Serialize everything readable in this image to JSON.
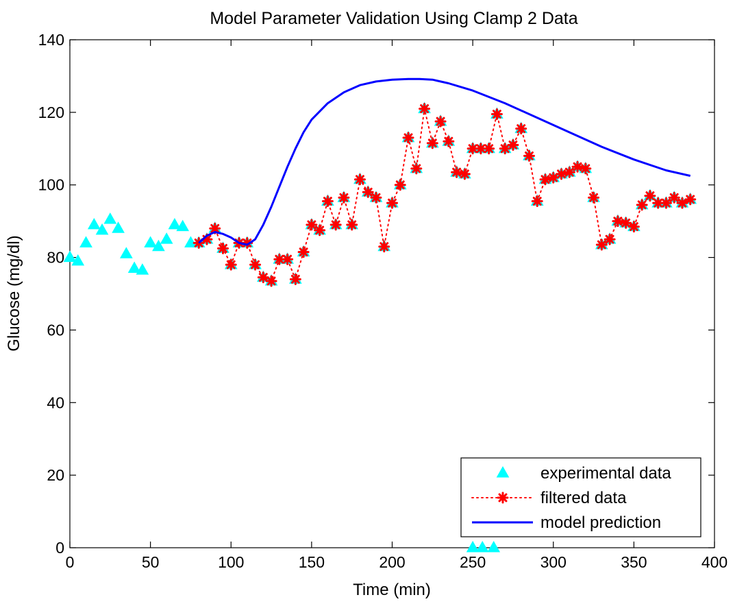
{
  "chart_data": {
    "type": "line",
    "title": "Model Parameter Validation Using Clamp 2 Data",
    "xlabel": "Time (min)",
    "ylabel": "Glucose (mg/dl)",
    "xlim": [
      0,
      400
    ],
    "ylim": [
      0,
      140
    ],
    "xticks": [
      0,
      50,
      100,
      150,
      200,
      250,
      300,
      350,
      400
    ],
    "yticks": [
      0,
      20,
      40,
      60,
      80,
      100,
      120,
      140
    ],
    "grid": false,
    "legend_position": "bottom-right",
    "series": [
      {
        "name": "experimental data",
        "style": "markers",
        "marker": "triangle",
        "color": "#00ffff",
        "x": [
          0,
          5,
          10,
          15,
          20,
          25,
          30,
          35,
          40,
          45,
          50,
          55,
          60,
          65,
          70,
          75,
          80,
          85,
          90,
          95,
          100,
          105,
          110,
          115,
          120,
          125,
          130,
          135,
          140,
          145,
          150,
          155,
          160,
          165,
          170,
          175,
          180,
          185,
          190,
          195,
          200,
          205,
          210,
          215,
          220,
          225,
          230,
          235,
          240,
          245,
          250,
          255,
          260,
          265,
          270,
          275,
          280,
          285,
          290,
          295,
          300,
          305,
          310,
          315,
          320,
          325,
          330,
          335,
          340,
          345,
          350,
          355,
          360,
          365,
          370,
          375,
          380,
          385,
          250,
          256,
          263
        ],
        "y": [
          80,
          79,
          84,
          89,
          87.5,
          90.5,
          88,
          81,
          77,
          76.5,
          84,
          83,
          85,
          89,
          88.5,
          84,
          84,
          85,
          88,
          82.5,
          78,
          84,
          84,
          78,
          74.5,
          73.5,
          79.5,
          79.5,
          74,
          81.5,
          89,
          87.5,
          95.5,
          89,
          96.5,
          89,
          101.5,
          98,
          96.5,
          83,
          95,
          100,
          113,
          104.5,
          121,
          111.5,
          117.5,
          112,
          103.5,
          103,
          110,
          110,
          110,
          119.5,
          110,
          111,
          115.5,
          108,
          95.5,
          101.5,
          102,
          103,
          103.5,
          105,
          104.5,
          96.5,
          83.5,
          85,
          90,
          89.5,
          88.5,
          94.5,
          97,
          95,
          95,
          96.5,
          95,
          96,
          0,
          0,
          0
        ]
      },
      {
        "name": "filtered data",
        "style": "dotted-markers",
        "marker": "asterisk",
        "color": "#ff0000",
        "x": [
          80,
          85,
          90,
          95,
          100,
          105,
          110,
          115,
          120,
          125,
          130,
          135,
          140,
          145,
          150,
          155,
          160,
          165,
          170,
          175,
          180,
          185,
          190,
          195,
          200,
          205,
          210,
          215,
          220,
          225,
          230,
          235,
          240,
          245,
          250,
          255,
          260,
          265,
          270,
          275,
          280,
          285,
          290,
          295,
          300,
          305,
          310,
          315,
          320,
          325,
          330,
          335,
          340,
          345,
          350,
          355,
          360,
          365,
          370,
          375,
          380,
          385
        ],
        "y": [
          84,
          85,
          88,
          82.5,
          78,
          84,
          84,
          78,
          74.5,
          73.5,
          79.5,
          79.5,
          74,
          81.5,
          89,
          87.5,
          95.5,
          89,
          96.5,
          89,
          101.5,
          98,
          96.5,
          83,
          95,
          100,
          113,
          104.5,
          121,
          111.5,
          117.5,
          112,
          103.5,
          103,
          110,
          110,
          110,
          119.5,
          110,
          111,
          115.5,
          108,
          95.5,
          101.5,
          102,
          103,
          103.5,
          105,
          104.5,
          96.5,
          83.5,
          85,
          90,
          89.5,
          88.5,
          94.5,
          97,
          95,
          95,
          96.5,
          95,
          96
        ]
      },
      {
        "name": "model prediction",
        "style": "line",
        "color": "#0000ff",
        "x": [
          80,
          85,
          90,
          95,
          100,
          105,
          110,
          115,
          120,
          125,
          130,
          135,
          140,
          145,
          150,
          160,
          170,
          180,
          190,
          200,
          210,
          217,
          225,
          235,
          250,
          270,
          290,
          310,
          330,
          350,
          370,
          385
        ],
        "y": [
          84,
          86,
          87,
          86.5,
          85.5,
          84,
          83.5,
          85,
          89,
          94,
          99.5,
          105,
          110,
          114.5,
          118,
          122.5,
          125.5,
          127.5,
          128.5,
          129,
          129.2,
          129.2,
          129,
          128,
          126,
          122.5,
          118.5,
          114.5,
          110.5,
          107,
          104,
          102.5
        ]
      }
    ]
  }
}
